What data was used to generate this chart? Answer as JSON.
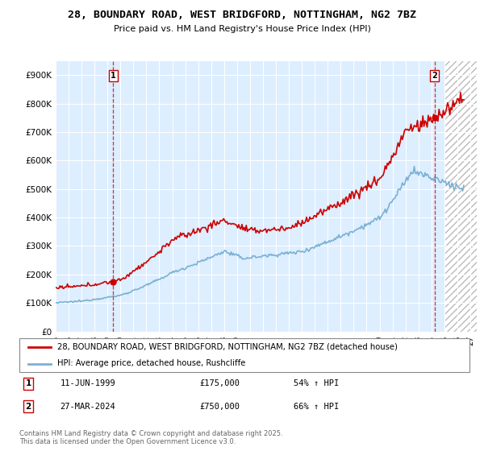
{
  "title": "28, BOUNDARY ROAD, WEST BRIDGFORD, NOTTINGHAM, NG2 7BZ",
  "subtitle": "Price paid vs. HM Land Registry's House Price Index (HPI)",
  "ylabel_values": [
    "£0",
    "£100K",
    "£200K",
    "£300K",
    "£400K",
    "£500K",
    "£600K",
    "£700K",
    "£800K",
    "£900K"
  ],
  "ylim": [
    0,
    950000
  ],
  "xlim_start": 1995.0,
  "xlim_end": 2027.5,
  "legend_line1": "28, BOUNDARY ROAD, WEST BRIDGFORD, NOTTINGHAM, NG2 7BZ (detached house)",
  "legend_line2": "HPI: Average price, detached house, Rushcliffe",
  "annotation1_date": "11-JUN-1999",
  "annotation1_price": "£175,000",
  "annotation1_hpi": "54% ↑ HPI",
  "annotation2_date": "27-MAR-2024",
  "annotation2_price": "£750,000",
  "annotation2_hpi": "66% ↑ HPI",
  "footer": "Contains HM Land Registry data © Crown copyright and database right 2025.\nThis data is licensed under the Open Government Licence v3.0.",
  "line_color_red": "#cc0000",
  "line_color_blue": "#7ab0d4",
  "background_color": "#ffffff",
  "plot_bg_color": "#ddeeff",
  "grid_color": "#ffffff",
  "sale1_x": 1999.44,
  "sale1_y": 175000,
  "sale2_x": 2024.24,
  "sale2_y": 750000,
  "hatch_start": 2025.0
}
